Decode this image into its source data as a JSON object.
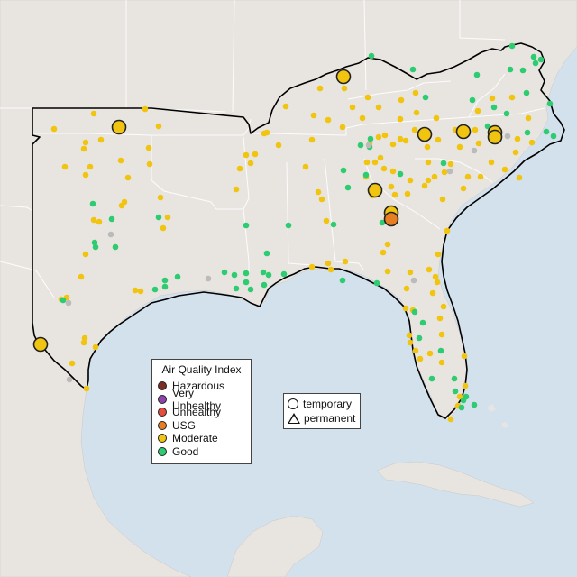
{
  "legend": {
    "title": "Air Quality Index",
    "categories": [
      {
        "label": "Hazardous",
        "color": "#7b2d26"
      },
      {
        "label": "Very Unhealthy",
        "color": "#8e44ad"
      },
      {
        "label": "Unhealthy",
        "color": "#e74c3c"
      },
      {
        "label": "USG",
        "color": "#e67e22"
      },
      {
        "label": "Moderate",
        "color": "#f1c40f"
      },
      {
        "label": "Good",
        "color": "#2ecc71"
      }
    ],
    "no_data_color": "#bbbbbb"
  },
  "type_legend": {
    "temporary": "temporary",
    "permanent": "permanent"
  },
  "colors": {
    "water": "#d3e1ec",
    "land": "#e8e5e1",
    "region_outline": "#000000",
    "state_border": "#ffffff"
  }
}
